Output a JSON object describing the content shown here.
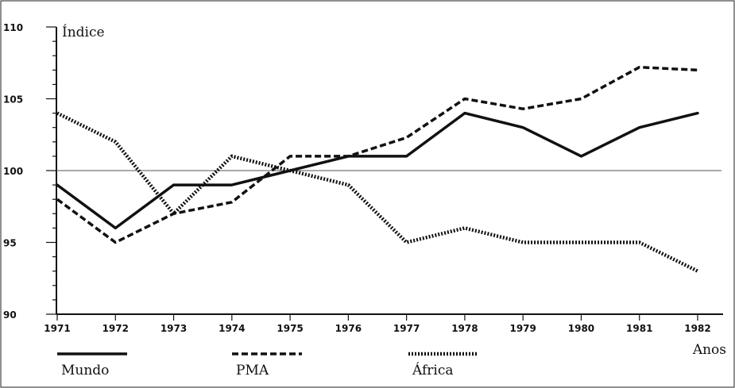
{
  "chart_data": {
    "type": "line",
    "ylabel": "Índice",
    "xlabel": "Anos",
    "x": [
      "1971",
      "1972",
      "1973",
      "1974",
      "1975",
      "1976",
      "1977",
      "1978",
      "1979",
      "1980",
      "1981",
      "1982"
    ],
    "ylim": [
      90,
      110
    ],
    "yticks": [
      90,
      95,
      100,
      105,
      110
    ],
    "reference_line": 100,
    "grid": false,
    "legend_position": "bottom",
    "series": [
      {
        "name": "Mundo",
        "style": "solid",
        "color": "#111111",
        "values": [
          99,
          96,
          99,
          99,
          100,
          101,
          101,
          104,
          103,
          101,
          103,
          104
        ]
      },
      {
        "name": "PMA",
        "style": "dashed",
        "color": "#111111",
        "values": [
          98,
          95,
          97,
          97.8,
          101,
          101,
          102.3,
          105,
          104.3,
          105,
          107.2,
          107
        ]
      },
      {
        "name": "África",
        "style": "dotted",
        "color": "#111111",
        "values": [
          104,
          102,
          97,
          101,
          100,
          99,
          95,
          96,
          95,
          95,
          95,
          93
        ]
      }
    ]
  }
}
